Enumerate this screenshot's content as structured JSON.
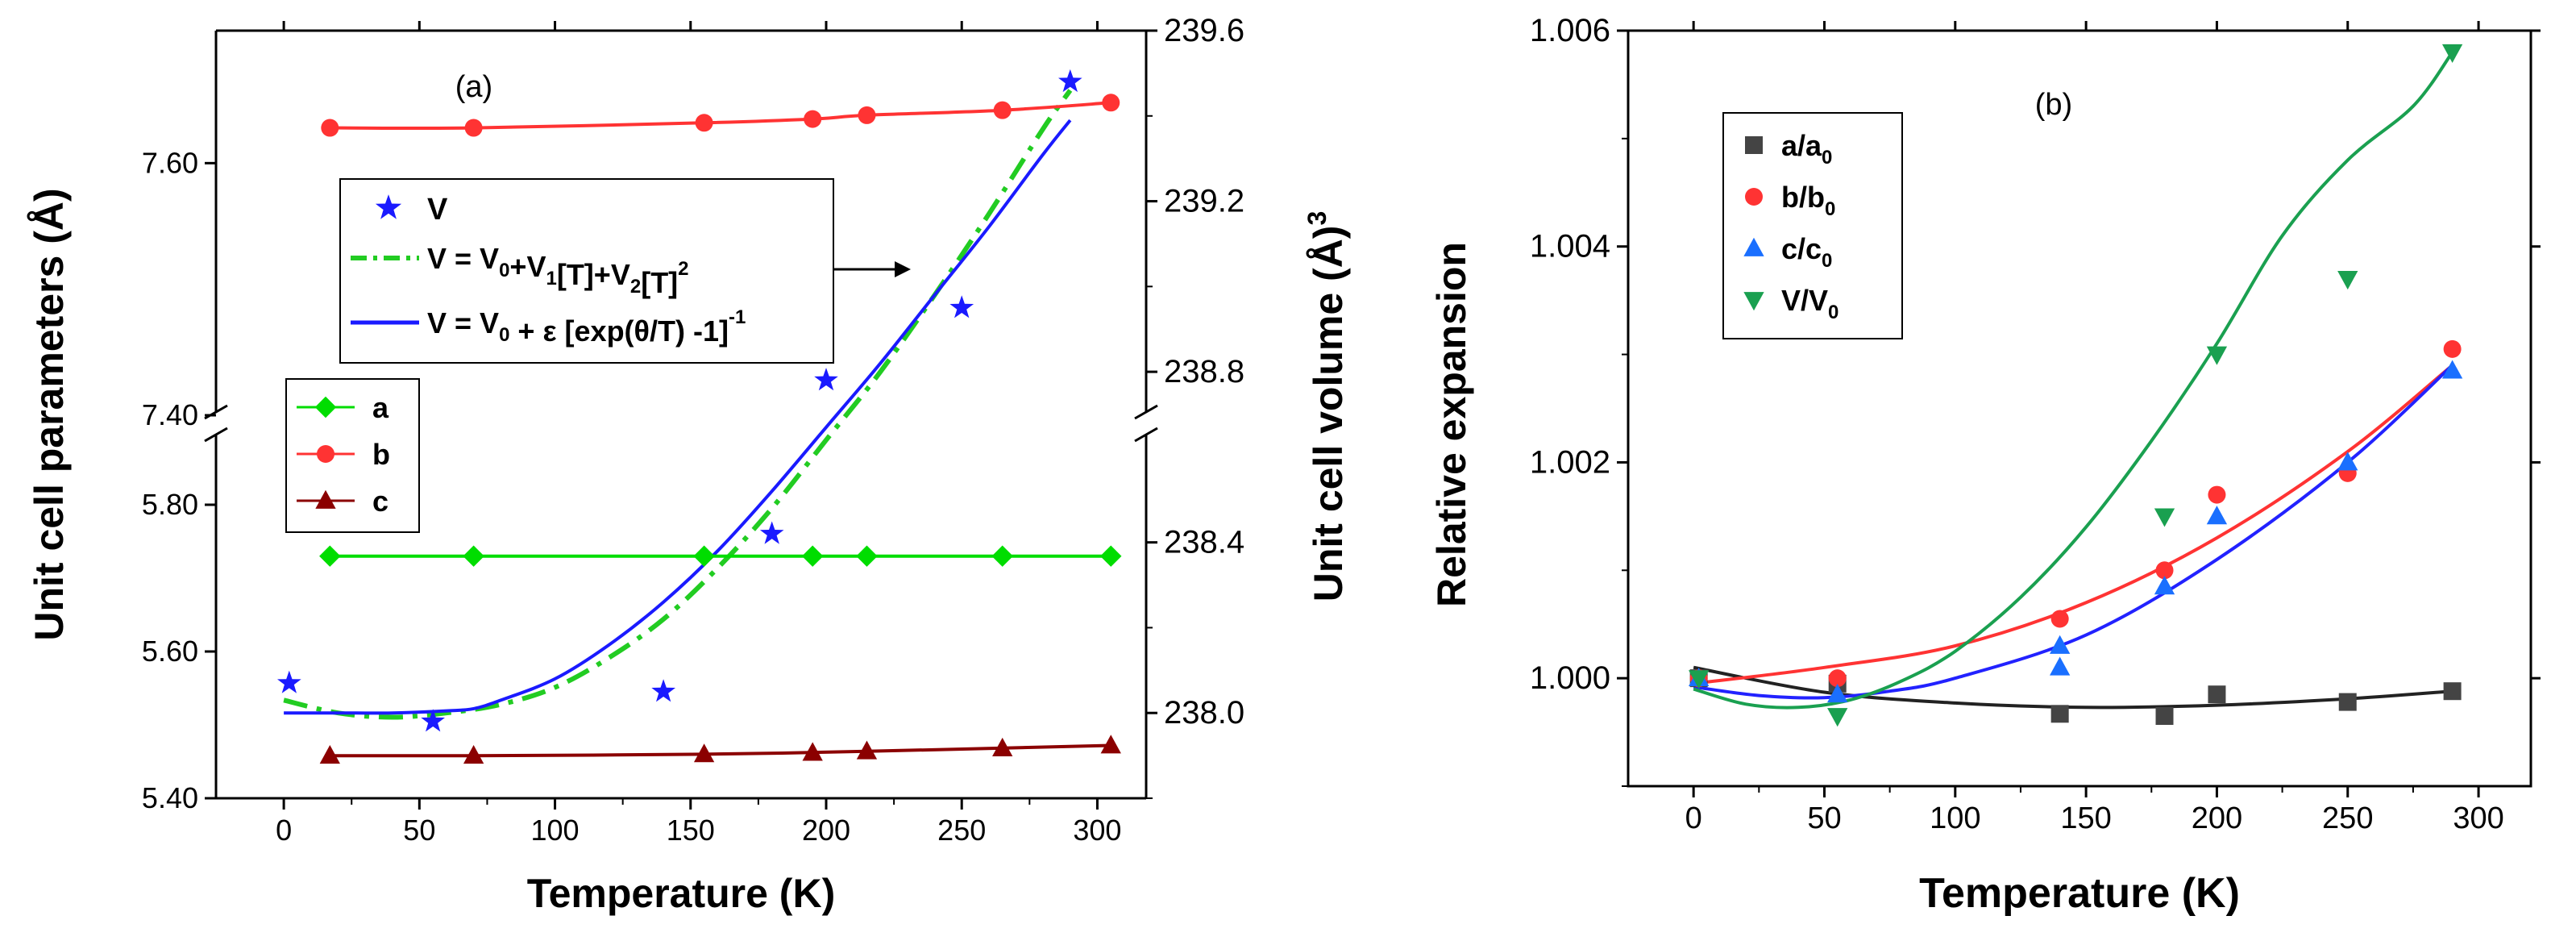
{
  "chart_data": [
    {
      "type": "scatter",
      "panel_label": "(a)",
      "xlabel": "Temperature (K)",
      "ylabel_left": "Unit cell parameters (Å)",
      "ylabel_right": "Unit cell volume (Å)",
      "ylabel_right_sup": "3",
      "xlim": [
        -25,
        318
      ],
      "x_ticks": [
        "0",
        "50",
        "100",
        "150",
        "200",
        "250",
        "300"
      ],
      "x_tick_values": [
        0,
        50,
        100,
        150,
        200,
        250,
        300
      ],
      "left_ticks_lower": [
        "5.40",
        "5.60",
        "5.80"
      ],
      "left_ticks_lower_values": [
        5.4,
        5.6,
        5.8
      ],
      "left_ticks_upper": [
        "7.40",
        "7.60"
      ],
      "left_ticks_upper_values": [
        7.4,
        7.6
      ],
      "lower_segment_ylim": [
        5.4,
        5.9
      ],
      "upper_segment_ylim": [
        7.4,
        7.7
      ],
      "right_ylim": [
        237.8,
        239.6
      ],
      "right_ticks": [
        "238.0",
        "238.4",
        "238.8",
        "239.2",
        "239.6"
      ],
      "right_tick_values": [
        238.0,
        238.4,
        238.8,
        239.2,
        239.6
      ],
      "series": [
        {
          "name": "a",
          "axis": "left",
          "marker": "diamond",
          "color": "#00dd00",
          "x": [
            17,
            70,
            155,
            195,
            215,
            265,
            305
          ],
          "y": [
            5.73,
            5.73,
            5.73,
            5.73,
            5.73,
            5.73,
            5.73
          ]
        },
        {
          "name": "b",
          "axis": "left",
          "marker": "circle",
          "color": "#ff3333",
          "x": [
            17,
            70,
            155,
            195,
            215,
            265,
            305
          ],
          "y": [
            7.628,
            7.628,
            7.632,
            7.635,
            7.638,
            7.642,
            7.648
          ]
        },
        {
          "name": "c",
          "axis": "left",
          "marker": "triangle-up",
          "color": "#8b0000",
          "x": [
            17,
            70,
            155,
            195,
            215,
            265,
            305
          ],
          "y": [
            5.458,
            5.458,
            5.46,
            5.462,
            5.464,
            5.468,
            5.472
          ]
        },
        {
          "name": "V",
          "axis": "right",
          "marker": "star",
          "color": "#1a1aff",
          "x": [
            2,
            55,
            140,
            180,
            200,
            250,
            290
          ],
          "y": [
            238.07,
            237.98,
            238.05,
            238.42,
            238.78,
            238.95,
            239.48
          ]
        }
      ],
      "fits": [
        {
          "name": "V = V0+V1[T]+V2[T]^2",
          "style": "dash-dot",
          "color": "#22cc22",
          "x": [
            0,
            20,
            40,
            60,
            80,
            100,
            120,
            140,
            160,
            180,
            200,
            220,
            240,
            260,
            280,
            290
          ],
          "y": [
            238.03,
            238.0,
            237.99,
            238.0,
            238.02,
            238.06,
            238.13,
            238.22,
            238.34,
            238.48,
            238.64,
            238.8,
            238.98,
            239.17,
            239.37,
            239.46
          ]
        },
        {
          "name": "V = V0 + ε [exp(θ/T) -1]^-1",
          "style": "solid",
          "color": "#1a1aff",
          "x": [
            0,
            20,
            40,
            60,
            70,
            80,
            100,
            120,
            140,
            160,
            180,
            200,
            220,
            240,
            260,
            280,
            290
          ],
          "y": [
            238.0,
            238.0,
            238.0,
            238.005,
            238.01,
            238.03,
            238.08,
            238.16,
            238.26,
            238.38,
            238.52,
            238.67,
            238.82,
            238.98,
            239.14,
            239.31,
            239.39
          ]
        },
        {
          "name": "a-fit",
          "style": "solid",
          "color": "#00dd00",
          "x": [
            17,
            305
          ],
          "y": [
            5.73,
            5.73
          ]
        },
        {
          "name": "b-fit",
          "style": "solid",
          "color": "#ff3333",
          "x": [
            17,
            70,
            155,
            195,
            215,
            265,
            305
          ],
          "y": [
            7.628,
            7.628,
            7.632,
            7.635,
            7.638,
            7.642,
            7.648
          ]
        },
        {
          "name": "c-fit",
          "style": "solid",
          "color": "#8b0000",
          "x": [
            17,
            70,
            155,
            215,
            305
          ],
          "y": [
            5.458,
            5.458,
            5.46,
            5.464,
            5.472
          ]
        }
      ],
      "legend_fit": [
        {
          "base": "V",
          "sub": "",
          "rest": ""
        },
        {
          "base": "V = V",
          "sub": "0",
          "rest": "+V",
          "sub2": "1",
          "rest2": "[T]+V",
          "sub3": "2",
          "rest3": "[T]",
          "sup": "2"
        },
        {
          "base": "V = V",
          "sub": "0",
          "rest": " + ε [exp(θ/T) -1]",
          "sup": "-1"
        }
      ],
      "legend_params": [
        "a",
        "b",
        "c"
      ]
    },
    {
      "type": "scatter",
      "panel_label": "(b)",
      "xlabel": "Temperature (K)",
      "ylabel": "Relative expansion",
      "xlim": [
        -25,
        320
      ],
      "ylim": [
        0.999,
        1.006
      ],
      "x_ticks": [
        "0",
        "50",
        "100",
        "150",
        "200",
        "250",
        "300"
      ],
      "x_tick_values": [
        0,
        50,
        100,
        150,
        200,
        250,
        300
      ],
      "y_ticks": [
        "1.000",
        "1.002",
        "1.004",
        "1.006"
      ],
      "y_tick_values": [
        1.0,
        1.002,
        1.004,
        1.006
      ],
      "series": [
        {
          "name": "a/a0",
          "base": "a/a",
          "sub": "0",
          "marker": "square",
          "color": "#444444",
          "x": [
            2,
            55,
            140,
            180,
            200,
            250,
            290
          ],
          "y": [
            1.0,
            0.99995,
            0.99967,
            0.99965,
            0.99985,
            0.99978,
            0.99988
          ]
        },
        {
          "name": "b/b0",
          "base": "b/b",
          "sub": "0",
          "marker": "circle",
          "color": "#ff3333",
          "x": [
            2,
            55,
            140,
            180,
            200,
            250,
            290
          ],
          "y": [
            1.0,
            1.0,
            1.00055,
            1.001,
            1.0017,
            1.0019,
            1.00305
          ]
        },
        {
          "name": "c/c0",
          "base": "c/c",
          "sub": "0",
          "marker": "triangle-up",
          "color": "#1a6fff",
          "x": [
            2,
            55,
            140,
            140,
            180,
            200,
            250,
            290
          ],
          "y": [
            1.0,
            0.99985,
            1.0003,
            1.0001,
            1.00085,
            1.0015,
            1.002,
            1.00285
          ]
        },
        {
          "name": "V/V0",
          "base": "V/V",
          "sub": "0",
          "marker": "triangle-down",
          "color": "#1aa050",
          "x": [
            2,
            55,
            180,
            200,
            250,
            290
          ],
          "y": [
            1.0,
            0.99965,
            1.0015,
            1.003,
            1.0037,
            1.0058
          ]
        }
      ],
      "fits": [
        {
          "name": "a/a0 fit",
          "color": "#222222",
          "x": [
            0,
            50,
            100,
            150,
            200,
            250,
            290
          ],
          "y": [
            1.0001,
            0.99987,
            0.99977,
            0.99973,
            0.99975,
            0.99981,
            0.99988
          ]
        },
        {
          "name": "b/b0 fit",
          "color": "#ff3333",
          "x": [
            0,
            50,
            100,
            150,
            200,
            250,
            290
          ],
          "y": [
            0.99995,
            1.0001,
            1.0003,
            1.0007,
            1.0013,
            1.0021,
            1.0029
          ]
        },
        {
          "name": "c/c0 fit",
          "color": "#2222ff",
          "x": [
            0,
            25,
            50,
            75,
            100,
            150,
            200,
            250,
            290
          ],
          "y": [
            0.99992,
            0.99984,
            0.99982,
            0.99988,
            1.0,
            1.0004,
            1.0011,
            1.002,
            1.0029
          ]
        },
        {
          "name": "V/V0 fit",
          "color": "#1aa050",
          "x": [
            0,
            20,
            40,
            60,
            80,
            100,
            125,
            150,
            175,
            200,
            225,
            250,
            275,
            290
          ],
          "y": [
            0.9999,
            0.99976,
            0.99973,
            0.9998,
            0.99998,
            1.00025,
            1.00075,
            1.0014,
            1.0022,
            1.0031,
            1.0041,
            1.0048,
            1.0053,
            1.0058
          ]
        }
      ]
    }
  ]
}
